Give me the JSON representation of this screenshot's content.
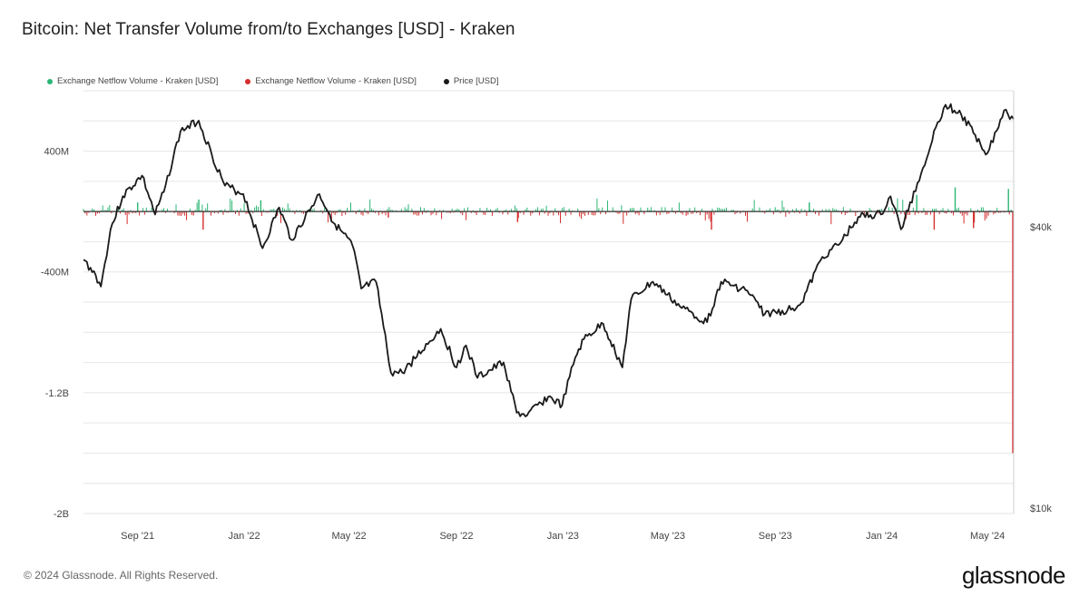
{
  "title": "Bitcoin: Net Transfer Volume from/to Exchanges [USD] - Kraken",
  "footer": "© 2024 Glassnode. All Rights Reserved.",
  "brand": "glassnode",
  "colors": {
    "inflow": "#2bb673",
    "outflow": "#d62d2d",
    "price": "#1a1a1a",
    "grid": "#e6e6e6"
  },
  "chart_data": {
    "type": "bar",
    "title": "Bitcoin: Net Transfer Volume from/to Exchanges [USD] - Kraken",
    "xlabel": "",
    "ylabel": "",
    "grid": true,
    "legend_position": "top-left",
    "series": [
      {
        "name": "Exchange Netflow Volume - Kraken [USD]",
        "color": "#2bb673",
        "axis": "left",
        "kind": "positive-bars"
      },
      {
        "name": "Exchange Netflow Volume - Kraken [USD]",
        "color": "#d62d2d",
        "axis": "left",
        "kind": "negative-bars"
      },
      {
        "name": "Price [USD]",
        "color": "#1a1a1a",
        "axis": "right",
        "kind": "line"
      }
    ],
    "x_ticks": [
      "Sep '21",
      "Jan '22",
      "May '22",
      "Sep '22",
      "Jan '23",
      "May '23",
      "Sep '23",
      "Jan '24",
      "May '24"
    ],
    "x_range": [
      "2021-07-01",
      "2024-05-31"
    ],
    "y_left": {
      "ticks": [
        "400M",
        "-400M",
        "-1.2B",
        "-2B"
      ],
      "tick_values": [
        400000000,
        -400000000,
        -1200000000,
        -2000000000
      ],
      "range": [
        -2000000000,
        800000000
      ]
    },
    "y_right": {
      "ticks": [
        "$40k",
        "$10k"
      ],
      "tick_values": [
        40000,
        10000
      ],
      "scale": "log"
    },
    "price": [
      [
        "2021-07-01",
        34000
      ],
      [
        "2021-07-15",
        31500
      ],
      [
        "2021-07-21",
        29800
      ],
      [
        "2021-08-01",
        39500
      ],
      [
        "2021-08-15",
        46500
      ],
      [
        "2021-09-06",
        51500
      ],
      [
        "2021-09-21",
        42500
      ],
      [
        "2021-10-01",
        47500
      ],
      [
        "2021-10-20",
        64000
      ],
      [
        "2021-11-10",
        67500
      ],
      [
        "2021-11-25",
        57000
      ],
      [
        "2021-12-10",
        49000
      ],
      [
        "2021-12-31",
        47000
      ],
      [
        "2022-01-22",
        36000
      ],
      [
        "2022-02-10",
        44000
      ],
      [
        "2022-02-24",
        37500
      ],
      [
        "2022-03-28",
        47000
      ],
      [
        "2022-04-15",
        40500
      ],
      [
        "2022-05-05",
        36500
      ],
      [
        "2022-05-15",
        29500
      ],
      [
        "2022-06-01",
        30500
      ],
      [
        "2022-06-18",
        19500
      ],
      [
        "2022-07-01",
        19500
      ],
      [
        "2022-08-14",
        24200
      ],
      [
        "2022-09-01",
        20000
      ],
      [
        "2022-09-12",
        22300
      ],
      [
        "2022-09-25",
        19000
      ],
      [
        "2022-10-25",
        20500
      ],
      [
        "2022-11-09",
        16000
      ],
      [
        "2022-11-21",
        15800
      ],
      [
        "2022-12-15",
        17300
      ],
      [
        "2022-12-31",
        16600
      ],
      [
        "2023-01-15",
        21000
      ],
      [
        "2023-01-25",
        23000
      ],
      [
        "2023-02-16",
        24800
      ],
      [
        "2023-03-10",
        20000
      ],
      [
        "2023-03-20",
        28000
      ],
      [
        "2023-04-14",
        30500
      ],
      [
        "2023-05-15",
        27000
      ],
      [
        "2023-06-15",
        25000
      ],
      [
        "2023-07-01",
        30500
      ],
      [
        "2023-07-31",
        29200
      ],
      [
        "2023-08-20",
        26000
      ],
      [
        "2023-09-15",
        26500
      ],
      [
        "2023-10-01",
        27500
      ],
      [
        "2023-10-25",
        34500
      ],
      [
        "2023-11-15",
        37000
      ],
      [
        "2023-12-05",
        42000
      ],
      [
        "2023-12-31",
        42500
      ],
      [
        "2024-01-11",
        46500
      ],
      [
        "2024-01-23",
        39500
      ],
      [
        "2024-02-15",
        52000
      ],
      [
        "2024-03-05",
        67000
      ],
      [
        "2024-03-14",
        73000
      ],
      [
        "2024-04-01",
        69500
      ],
      [
        "2024-04-15",
        63500
      ],
      [
        "2024-05-01",
        57500
      ],
      [
        "2024-05-20",
        71000
      ],
      [
        "2024-05-31",
        68000
      ]
    ],
    "netflow_notable": [
      [
        "2021-09-01",
        60000000
      ],
      [
        "2021-11-10",
        80000000
      ],
      [
        "2021-11-15",
        -120000000
      ],
      [
        "2022-01-20",
        75000000
      ],
      [
        "2022-06-15",
        -40000000
      ],
      [
        "2022-11-10",
        -70000000
      ],
      [
        "2023-06-20",
        -120000000
      ],
      [
        "2023-10-10",
        60000000
      ],
      [
        "2024-02-10",
        110000000
      ],
      [
        "2024-03-01",
        -120000000
      ],
      [
        "2024-03-25",
        160000000
      ],
      [
        "2024-04-15",
        -110000000
      ],
      [
        "2024-05-25",
        150000000
      ],
      [
        "2024-05-30",
        -1600000000
      ]
    ]
  }
}
